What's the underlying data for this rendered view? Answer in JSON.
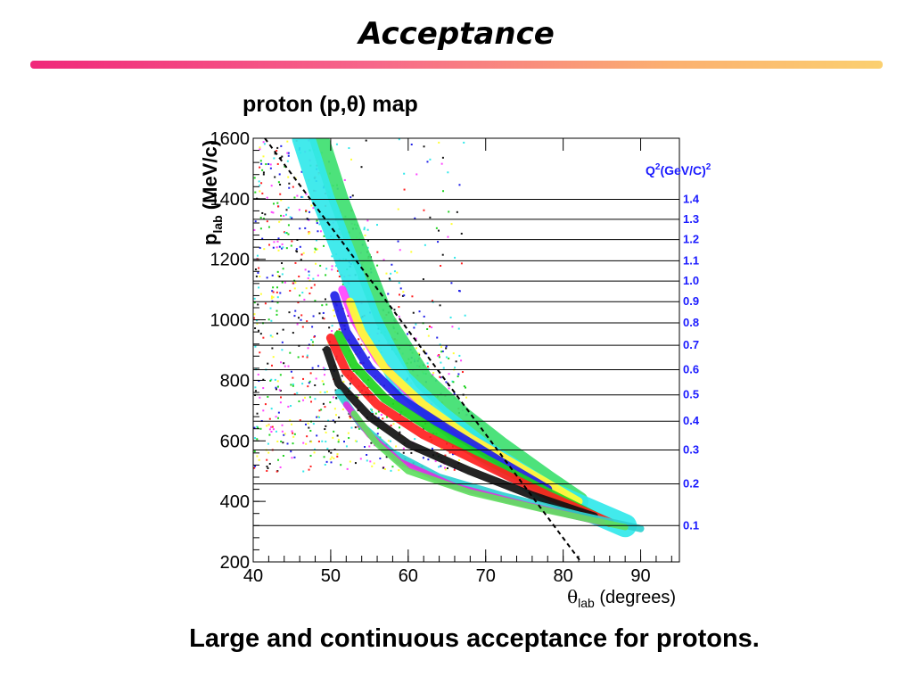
{
  "slide": {
    "title": "Acceptance",
    "caption": "Large and continuous acceptance for protons."
  },
  "colors": {
    "band_colors": [
      "#3ee070",
      "#32e8ea",
      "#ff44ff",
      "#ffff33",
      "#2020e8",
      "#1ed21e",
      "#ff2020",
      "#111111",
      "#30d0d0",
      "#e030e0",
      "#60e060"
    ],
    "q2_label_color": "#1a1aff"
  },
  "chart_data": {
    "type": "scatter",
    "title": "proton (p,θ) map",
    "xlabel_symbol": "θ",
    "xlabel_sub": "lab",
    "xlabel_unit": " (degrees)",
    "ylabel_symbol": "p",
    "ylabel_sub": "lab",
    "ylabel_unit": " (MeV/c)",
    "xlim": [
      40,
      95
    ],
    "ylim": [
      200,
      1600
    ],
    "x_ticks": [
      40,
      50,
      60,
      70,
      80,
      90
    ],
    "y_ticks": [
      200,
      400,
      600,
      800,
      1000,
      1200,
      1400,
      1600
    ],
    "q2_header": "Q",
    "q2_header_sup": "2",
    "q2_header_unit": "(GeV/C)",
    "q2_header_unit_sup": "2",
    "q2_lines": [
      {
        "label": "1.4",
        "p": 1398
      },
      {
        "label": "1.3",
        "p": 1332
      },
      {
        "label": "1.2",
        "p": 1265
      },
      {
        "label": "1.1",
        "p": 1195
      },
      {
        "label": "1.0",
        "p": 1128
      },
      {
        "label": "0.9",
        "p": 1060
      },
      {
        "label": "0.8",
        "p": 990
      },
      {
        "label": "0.7",
        "p": 916
      },
      {
        "label": "0.6",
        "p": 835
      },
      {
        "label": "0.5",
        "p": 752
      },
      {
        "label": "0.4",
        "p": 665
      },
      {
        "label": "0.3",
        "p": 570
      },
      {
        "label": "0.2",
        "p": 458
      },
      {
        "label": "0.1",
        "p": 320
      }
    ],
    "dashed_line": [
      {
        "x": 41.5,
        "y": 1600
      },
      {
        "x": 82.3,
        "y": 200
      }
    ],
    "bands": [
      {
        "color_index": 0,
        "points": [
          [
            48.5,
            1600
          ],
          [
            51,
            1400
          ],
          [
            54,
            1200
          ],
          [
            57,
            1000
          ],
          [
            62,
            800
          ],
          [
            67,
            680
          ],
          [
            72,
            580
          ],
          [
            78,
            470
          ],
          [
            82,
            400
          ]
        ]
      },
      {
        "color_index": 1,
        "points": [
          [
            46.5,
            1600
          ],
          [
            49,
            1400
          ],
          [
            52,
            1200
          ],
          [
            55,
            1000
          ],
          [
            59,
            800
          ],
          [
            64,
            680
          ],
          [
            70,
            560
          ],
          [
            78,
            430
          ],
          [
            88,
            320
          ]
        ]
      },
      {
        "color_index": 2,
        "points": [
          [
            51.5,
            1100
          ],
          [
            53,
            1000
          ],
          [
            56,
            870
          ],
          [
            60,
            760
          ],
          [
            66,
            640
          ],
          [
            72,
            550
          ],
          [
            80,
            420
          ]
        ]
      },
      {
        "color_index": 3,
        "points": [
          [
            52.5,
            1060
          ],
          [
            54,
            960
          ],
          [
            57,
            840
          ],
          [
            62,
            720
          ],
          [
            68,
            610
          ],
          [
            76,
            490
          ],
          [
            82,
            400
          ]
        ]
      },
      {
        "color_index": 4,
        "points": [
          [
            50.5,
            1080
          ],
          [
            52,
            960
          ],
          [
            55,
            840
          ],
          [
            59,
            740
          ],
          [
            65,
            640
          ],
          [
            72,
            530
          ],
          [
            78,
            440
          ]
        ]
      },
      {
        "color_index": 5,
        "points": [
          [
            51,
            950
          ],
          [
            53,
            850
          ],
          [
            57,
            740
          ],
          [
            63,
            640
          ],
          [
            70,
            540
          ],
          [
            78,
            430
          ],
          [
            85,
            340
          ]
        ]
      },
      {
        "color_index": 6,
        "points": [
          [
            50,
            940
          ],
          [
            52,
            830
          ],
          [
            56,
            720
          ],
          [
            62,
            620
          ],
          [
            70,
            520
          ],
          [
            78,
            420
          ],
          [
            86,
            330
          ]
        ]
      },
      {
        "color_index": 7,
        "points": [
          [
            49.5,
            900
          ],
          [
            51,
            790
          ],
          [
            55,
            680
          ],
          [
            60,
            590
          ],
          [
            68,
            500
          ],
          [
            76,
            420
          ],
          [
            84,
            350
          ]
        ]
      },
      {
        "color_index": 8,
        "points": [
          [
            51,
            760
          ],
          [
            54,
            650
          ],
          [
            58,
            560
          ],
          [
            64,
            480
          ],
          [
            72,
            420
          ],
          [
            82,
            355
          ],
          [
            90,
            310
          ]
        ]
      },
      {
        "color_index": 9,
        "points": [
          [
            52,
            720
          ],
          [
            55,
            620
          ],
          [
            59,
            530
          ],
          [
            66,
            450
          ],
          [
            75,
            390
          ],
          [
            85,
            330
          ]
        ]
      },
      {
        "color_index": 10,
        "points": [
          [
            53,
            690
          ],
          [
            56,
            590
          ],
          [
            60,
            500
          ],
          [
            68,
            430
          ],
          [
            78,
            370
          ],
          [
            88,
            315
          ]
        ]
      }
    ]
  }
}
